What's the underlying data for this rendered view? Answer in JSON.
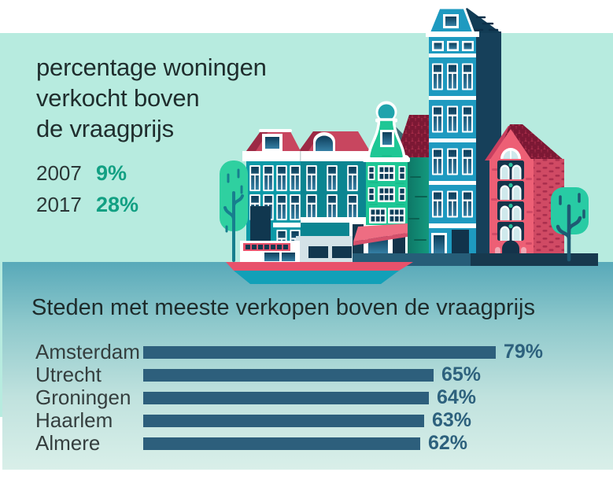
{
  "header": {
    "title": "percentage woningen\nverkocht boven\nde vraagprijs"
  },
  "colors": {
    "mint_background": "#b7ebdf",
    "panel_gradient_top": "#58a9b9",
    "panel_gradient_bottom": "#d9efe9",
    "accent_green": "#12a083",
    "bar_color": "#2d5f7c",
    "bar_value_label_color": "#2d617d",
    "title_text": "#1f2d2d"
  },
  "chart_data": [
    {
      "type": "table",
      "title": "percentage woningen verkocht boven de vraagprijs",
      "categories": [
        "2007",
        "2017"
      ],
      "values": [
        9,
        28
      ],
      "value_labels": [
        "9%",
        "28%"
      ]
    },
    {
      "type": "bar",
      "orientation": "horizontal",
      "title": "Steden met meeste verkopen boven de vraagprijs",
      "categories": [
        "Amsterdam",
        "Utrecht",
        "Groningen",
        "Haarlem",
        "Almere"
      ],
      "values": [
        79,
        65,
        64,
        63,
        62
      ],
      "value_labels": [
        "79%",
        "65%",
        "64%",
        "63%",
        "62%"
      ],
      "xlim": [
        0,
        100
      ],
      "bar_color": "#2d5f7c",
      "value_label_position": "right-of-bar",
      "legend": "none",
      "grid": "off"
    }
  ],
  "illustration": {
    "name": "amsterdam-canal-houses",
    "elements": [
      "canal houses",
      "bell-gable house",
      "boat",
      "trees",
      "canal water",
      "quay"
    ]
  }
}
